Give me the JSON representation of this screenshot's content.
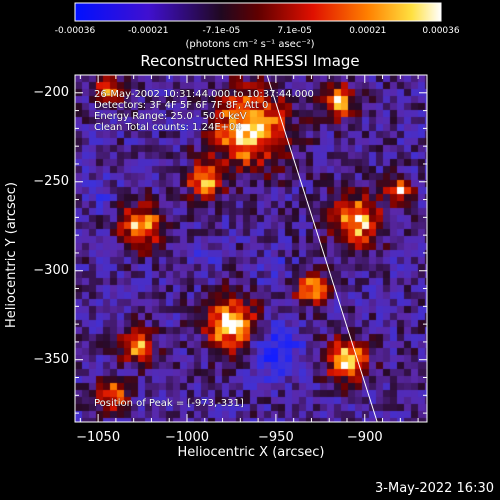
{
  "colorbar": {
    "ticks": [
      "-0.00036",
      "-0.00021",
      "-7.1e-05",
      "7.1e-05",
      "0.00021",
      "0.00036"
    ],
    "unit_label": "(photons cm⁻² s⁻¹ asec⁻²)"
  },
  "chart_data": {
    "type": "heatmap",
    "title": "Reconstructed RHESSI Image",
    "xlabel": "Heliocentric X (arcsec)",
    "ylabel": "Heliocentric Y (arcsec)",
    "xlim": [
      -1063,
      -865
    ],
    "ylim": [
      -385,
      -190
    ],
    "xticks": [
      "-1050",
      "-1000",
      "-950",
      "-900"
    ],
    "yticks": [
      "-200",
      "-250",
      "-300",
      "-350"
    ],
    "colormap": "blue-purple-red-orange-yellow-white",
    "value_range": [
      -0.00036,
      0.00036
    ],
    "info_lines": [
      "26-May-2002 10:31:44.000 to 10:37:44.000",
      "Detectors: 3F 4F 5F 6F 7F 8F, Att 0",
      "Energy Range: 25.0 - 50.0 keV",
      "Clean    Total counts: 1.24E+04"
    ],
    "peak_label": "Position of Peak = [-973,-331]",
    "limb_line": {
      "start": [
        -955,
        -190
      ],
      "end": [
        -893,
        -385
      ]
    },
    "bright_sources": [
      {
        "x": -1025,
        "y": -275,
        "r": 10,
        "level": 0.85
      },
      {
        "x": -1028,
        "y": -342,
        "r": 8,
        "level": 0.8
      },
      {
        "x": -975,
        "y": -330,
        "r": 12,
        "level": 1.0
      },
      {
        "x": -990,
        "y": -250,
        "r": 8,
        "level": 0.8
      },
      {
        "x": -965,
        "y": -220,
        "r": 18,
        "level": 0.95
      },
      {
        "x": -905,
        "y": -272,
        "r": 12,
        "level": 0.9
      },
      {
        "x": -880,
        "y": -255,
        "r": 6,
        "level": 0.75
      },
      {
        "x": -910,
        "y": -350,
        "r": 10,
        "level": 0.85
      },
      {
        "x": -1045,
        "y": -198,
        "r": 7,
        "level": 0.75
      },
      {
        "x": -915,
        "y": -205,
        "r": 8,
        "level": 0.8
      },
      {
        "x": -1042,
        "y": -370,
        "r": 7,
        "level": 0.75
      },
      {
        "x": -930,
        "y": -310,
        "r": 8,
        "level": 0.7
      }
    ],
    "dark_regions": [
      {
        "x": -950,
        "y": -345,
        "r": 12,
        "level": -0.9
      },
      {
        "x": -1050,
        "y": -255,
        "r": 7,
        "level": -0.6
      },
      {
        "x": -990,
        "y": -290,
        "r": 8,
        "level": -0.5
      },
      {
        "x": -1000,
        "y": -215,
        "r": 8,
        "level": -0.5
      },
      {
        "x": -950,
        "y": -300,
        "r": 8,
        "level": -0.5
      }
    ]
  },
  "timestamp": "3-May-2022 16:30"
}
